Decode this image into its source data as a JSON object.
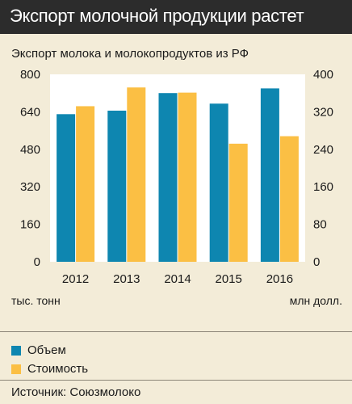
{
  "title": "Экспорт молочной продукции растет",
  "chart_data": {
    "type": "bar",
    "title": "Экспорт молока и молокопродуктов из РФ",
    "categories": [
      "2012",
      "2013",
      "2014",
      "2015",
      "2016"
    ],
    "series": [
      {
        "name": "Объем",
        "axis": "left",
        "color": "#0e86b0",
        "values": [
          630,
          645,
          720,
          675,
          740
        ]
      },
      {
        "name": "Стоимость",
        "axis": "right",
        "color": "#fbbf44",
        "values": [
          332,
          372,
          361,
          252,
          268
        ]
      }
    ],
    "y_left": {
      "label": "тыс. тонн",
      "ylim": [
        0,
        800
      ],
      "ticks": [
        "0",
        "160",
        "320",
        "480",
        "640",
        "800"
      ]
    },
    "y_right": {
      "label": "млн долл.",
      "ylim": [
        0,
        400
      ],
      "ticks": [
        "0",
        "80",
        "160",
        "240",
        "320",
        "400"
      ]
    },
    "grid": false,
    "legend_position": "bottom-left"
  },
  "legend": [
    {
      "label": "Объем",
      "color": "#0e86b0"
    },
    {
      "label": "Стоимость",
      "color": "#fbbf44"
    }
  ],
  "source": "Источник: Союзмолоко",
  "colors": {
    "background": "#f3ecd8",
    "title_bar": "#2c2c2c",
    "plot_area": "#ffffff"
  }
}
